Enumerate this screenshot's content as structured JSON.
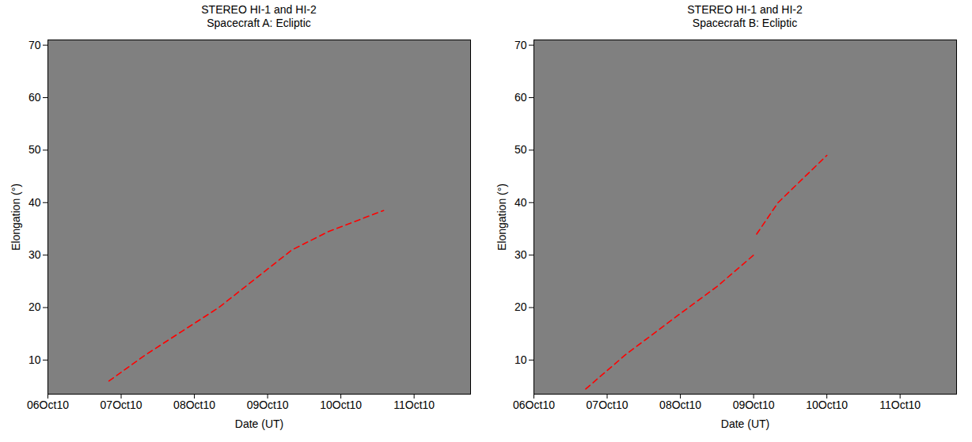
{
  "chart_data": [
    {
      "type": "line",
      "title": "STEREO HI-1 and HI-2",
      "subtitle": "Spacecraft A: Ecliptic",
      "x_label": "Date (UT)",
      "y_label": "Elongation (°)",
      "xlim": [
        "2010-10-06T00:00Z",
        "2010-10-11T18:30Z"
      ],
      "xticks": [
        {
          "value": "2010-10-06T00:00Z",
          "label": "06Oct10"
        },
        {
          "value": "2010-10-07T00:00Z",
          "label": "07Oct10"
        },
        {
          "value": "2010-10-08T00:00Z",
          "label": "08Oct10"
        },
        {
          "value": "2010-10-09T00:00Z",
          "label": "09Oct10"
        },
        {
          "value": "2010-10-10T00:00Z",
          "label": "10Oct10"
        },
        {
          "value": "2010-10-11T00:00Z",
          "label": "11Oct10"
        }
      ],
      "ylim": [
        3.5,
        71
      ],
      "yticks": [
        10,
        20,
        30,
        40,
        50,
        60,
        70
      ],
      "x": [
        "2010-10-06T20:00Z",
        "2010-10-07T08:00Z",
        "2010-10-07T20:00Z",
        "2010-10-08T08:00Z",
        "2010-10-08T20:00Z",
        "2010-10-09T08:00Z",
        "2010-10-09T20:00Z",
        "2010-10-10T14:00Z"
      ],
      "series": [
        {
          "color": "#ff0000",
          "line_style": "dashed",
          "values": [
            6.0,
            11.0,
            15.5,
            20.0,
            25.5,
            31.0,
            34.5,
            38.5
          ]
        }
      ]
    },
    {
      "type": "line",
      "title": "STEREO HI-1 and HI-2",
      "subtitle": "Spacecraft B: Ecliptic",
      "x_label": "Date (UT)",
      "y_label": "Elongation (°)",
      "xlim": [
        "2010-10-06T00:00Z",
        "2010-10-11T18:30Z"
      ],
      "xticks": [
        {
          "value": "2010-10-06T00:00Z",
          "label": "06Oct10"
        },
        {
          "value": "2010-10-07T00:00Z",
          "label": "07Oct10"
        },
        {
          "value": "2010-10-08T00:00Z",
          "label": "08Oct10"
        },
        {
          "value": "2010-10-09T00:00Z",
          "label": "09Oct10"
        },
        {
          "value": "2010-10-10T00:00Z",
          "label": "10Oct10"
        },
        {
          "value": "2010-10-11T00:00Z",
          "label": "11Oct10"
        }
      ],
      "ylim": [
        3.5,
        71
      ],
      "yticks": [
        10,
        20,
        30,
        40,
        50,
        60,
        70
      ],
      "x": [
        "2010-10-06T17:00Z",
        "2010-10-07T06:00Z",
        "2010-10-07T22:00Z",
        "2010-10-08T12:00Z",
        "2010-10-09T00:00Z",
        "2010-10-09T00:30Z",
        "2010-10-09T01:00Z",
        "2010-10-09T08:00Z",
        "2010-10-10T00:00Z"
      ],
      "series": [
        {
          "color": "#ff0000",
          "line_style": "dashed",
          "values": [
            4.5,
            11.0,
            18.0,
            24.0,
            30.0,
            null,
            34.0,
            40.0,
            49.0
          ]
        }
      ]
    }
  ]
}
